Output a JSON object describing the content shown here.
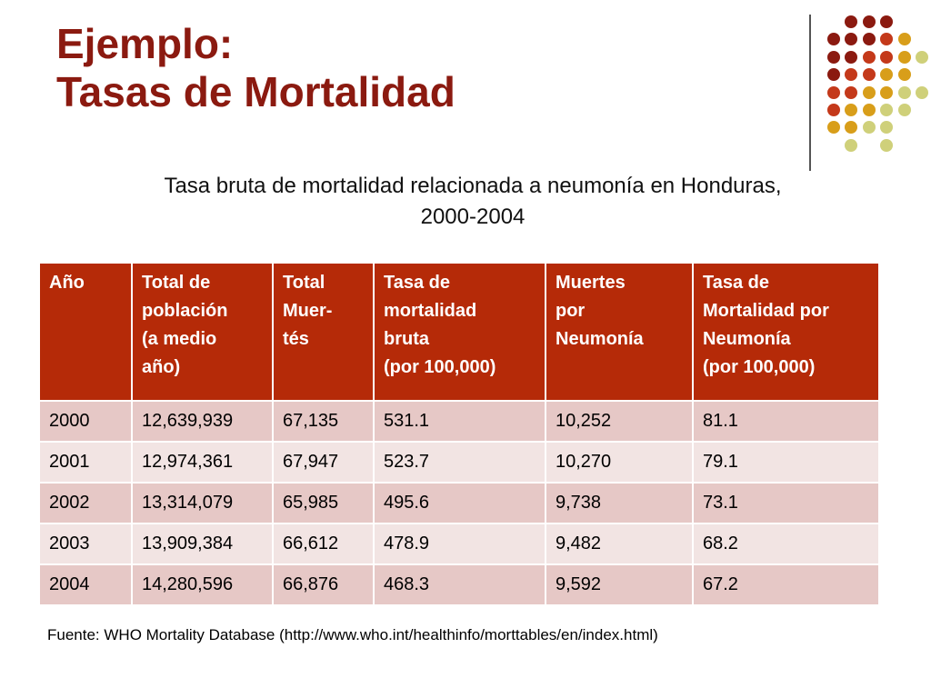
{
  "title": {
    "line1": "Ejemplo:",
    "line2": "Tasas de Mortalidad"
  },
  "subtitle": {
    "line1": "Tasa bruta de mortalidad relacionada a neumonía en Honduras,",
    "line2": "2000-2004"
  },
  "table": {
    "headers": [
      [
        "Año"
      ],
      [
        "Total de",
        "población",
        "(a medio",
        "año)"
      ],
      [
        "Total",
        "Muer-",
        "tés"
      ],
      [
        "Tasa  de",
        "mortalidad",
        "bruta",
        "(por 100,000)"
      ],
      [
        "Muertes",
        "por",
        "Neumonía"
      ],
      [
        "Tasa de",
        "Mortalidad por",
        "Neumonía",
        "(por 100,000)"
      ]
    ],
    "rows": [
      [
        "2000",
        "12,639,939",
        "67,135",
        "531.1",
        "10,252",
        "81.1"
      ],
      [
        "2001",
        "12,974,361",
        "67,947",
        "523.7",
        "10,270",
        "79.1"
      ],
      [
        "2002",
        "13,314,079",
        "65,985",
        "495.6",
        "9,738",
        "73.1"
      ],
      [
        "2003",
        "13,909,384",
        "66,612",
        "478.9",
        "9,482",
        "68.2"
      ],
      [
        "2004",
        "14,280,596",
        "66,876",
        "468.3",
        "9,592",
        "67.2"
      ]
    ]
  },
  "source": "Fuente: WHO Mortality Database (http://www.who.int/healthinfo/morttables/en/index.html)",
  "colors": {
    "title": "#8b1a10",
    "header_bg": "#b52a08",
    "row_odd": "#e6c8c6",
    "row_even": "#f2e4e3",
    "dot_palette": [
      "#8b1a10",
      "#c4391a",
      "#d89e1a",
      "#cfd07a"
    ]
  }
}
